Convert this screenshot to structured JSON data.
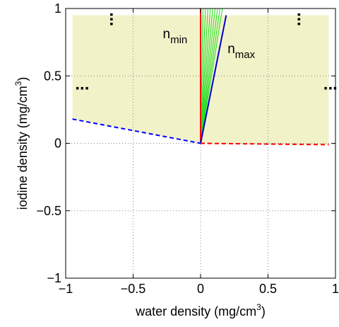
{
  "chart_data": {
    "type": "line",
    "xlabel_main": "water density (mg/cm",
    "xlabel_sup": "3",
    "xlabel_close": ")",
    "ylabel_main": "iodine density (mg/cm",
    "ylabel_sup": "3",
    "ylabel_close": ")",
    "xlim": [
      -1,
      1
    ],
    "ylim": [
      -1,
      1
    ],
    "x_ticks": [
      -1,
      -0.5,
      0,
      0.5,
      1
    ],
    "y_ticks": [
      -1,
      -0.5,
      0,
      0.5,
      1
    ],
    "x_tick_labels": [
      "−1",
      "−0.5",
      "0",
      "0.5",
      "1"
    ],
    "y_tick_labels": [
      "−1",
      "−0.5",
      "0",
      "0.5",
      "1"
    ],
    "grid": "dotted",
    "shaded_region": {
      "x": [
        -0.95,
        0.95
      ],
      "y": [
        0,
        0.95
      ],
      "lower_edge": [
        [
          -0.95,
          0.18
        ],
        [
          0,
          0
        ],
        [
          0.95,
          -0.01
        ]
      ],
      "color": "#f2f2c9"
    },
    "series": [
      {
        "style": "dashed",
        "color": "#0000ff",
        "x": [
          -0.95,
          0
        ],
        "y": [
          0.18,
          0
        ]
      },
      {
        "style": "dashed",
        "color": "#ff0000",
        "x": [
          0,
          0.95
        ],
        "y": [
          0,
          -0.01
        ]
      },
      {
        "style": "solid",
        "color": "#ff0000",
        "x": [
          0,
          0
        ],
        "y": [
          0,
          1
        ]
      },
      {
        "style": "solid",
        "color": "#0000cc",
        "x": [
          0,
          0.19
        ],
        "y": [
          0,
          0.95
        ]
      }
    ],
    "fan_lines": {
      "color": "#22dd22",
      "origin": [
        0,
        0
      ],
      "endpoints_x": [
        0.018,
        0.036,
        0.054,
        0.072,
        0.09,
        0.108,
        0.126,
        0.144,
        0.162
      ],
      "endpoint_y": 1
    },
    "annotations": {
      "n_min": {
        "base": "n",
        "sub": "min",
        "x": -0.28,
        "y": 0.78
      },
      "n_max": {
        "base": "n",
        "sub": "max",
        "x": 0.2,
        "y": 0.67
      }
    },
    "ellipsis_marks": {
      "text": "...",
      "horizontal": [
        [
          -0.93,
          0.4
        ],
        [
          0.91,
          0.4
        ]
      ],
      "vertical": [
        [
          -0.67,
          0.92
        ],
        [
          0.72,
          0.92
        ]
      ]
    }
  }
}
